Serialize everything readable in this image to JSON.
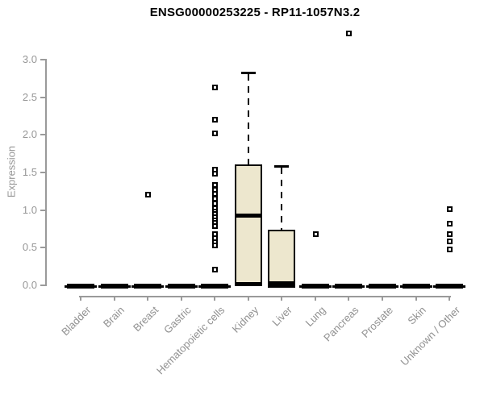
{
  "chart_data": {
    "type": "boxplot",
    "title": "ENSG00000253225 - RP11-1057N3.2",
    "ylabel": "Expression",
    "xlabel": "",
    "y_ticks": [
      "0.0",
      "0.5",
      "1.0",
      "1.5",
      "2.0",
      "2.5",
      "3.0"
    ],
    "ylim": [
      0,
      3.45
    ],
    "grid": false,
    "legend": "none",
    "x_label_rotation_deg": 45,
    "colors": {
      "box_fill": "#EDE7CE",
      "box_border": "#000000",
      "median": "#000000",
      "axis": "#9A9A9A",
      "tick_label": "#969696",
      "title": "#000000",
      "background": "#FFFFFF"
    },
    "categories": [
      "Bladder",
      "Brain",
      "Breast",
      "Gastric",
      "Hematopoietic cells",
      "Kidney",
      "Liver",
      "Lung",
      "Pancreas",
      "Prostate",
      "Skin",
      "Unknown / Other"
    ],
    "boxes": [
      {
        "category": "Bladder",
        "low": 0,
        "q1": 0,
        "median": 0,
        "q3": 0.02,
        "high": 0.02,
        "outliers": []
      },
      {
        "category": "Brain",
        "low": 0,
        "q1": 0,
        "median": 0,
        "q3": 0.02,
        "high": 0.02,
        "outliers": []
      },
      {
        "category": "Breast",
        "low": 0,
        "q1": 0,
        "median": 0,
        "q3": 0.02,
        "high": 0.02,
        "outliers": [
          1.2
        ]
      },
      {
        "category": "Gastric",
        "low": 0,
        "q1": 0,
        "median": 0,
        "q3": 0.02,
        "high": 0.02,
        "outliers": []
      },
      {
        "category": "Hematopoietic cells",
        "low": 0,
        "q1": 0,
        "median": 0,
        "q3": 0.02,
        "high": 0.02,
        "outliers": [
          2.63,
          2.2,
          2.01,
          1.53,
          1.48,
          1.33,
          1.26,
          1.21,
          1.15,
          1.08,
          1.02,
          0.98,
          0.94,
          0.9,
          0.86,
          0.82,
          0.78,
          0.67,
          0.62,
          0.57,
          0.52,
          0.2
        ]
      },
      {
        "category": "Kidney",
        "low": 0.02,
        "q1": 0.02,
        "median": 0.92,
        "q3": 1.6,
        "high": 2.82,
        "outliers": []
      },
      {
        "category": "Liver",
        "low": 0,
        "q1": 0,
        "median": 0.02,
        "q3": 0.73,
        "high": 1.58,
        "outliers": []
      },
      {
        "category": "Lung",
        "low": 0,
        "q1": 0,
        "median": 0,
        "q3": 0.02,
        "high": 0.02,
        "outliers": [
          0.68
        ]
      },
      {
        "category": "Pancreas",
        "low": 0,
        "q1": 0,
        "median": 0,
        "q3": 0.02,
        "high": 0.02,
        "outliers": [
          3.34
        ]
      },
      {
        "category": "Prostate",
        "low": 0,
        "q1": 0,
        "median": 0,
        "q3": 0.02,
        "high": 0.02,
        "outliers": []
      },
      {
        "category": "Skin",
        "low": 0,
        "q1": 0,
        "median": 0,
        "q3": 0.02,
        "high": 0.02,
        "outliers": []
      },
      {
        "category": "Unknown / Other",
        "low": 0,
        "q1": 0,
        "median": 0,
        "q3": 0.02,
        "high": 0.02,
        "outliers": [
          1.01,
          0.81,
          0.68,
          0.58,
          0.47
        ]
      }
    ]
  }
}
